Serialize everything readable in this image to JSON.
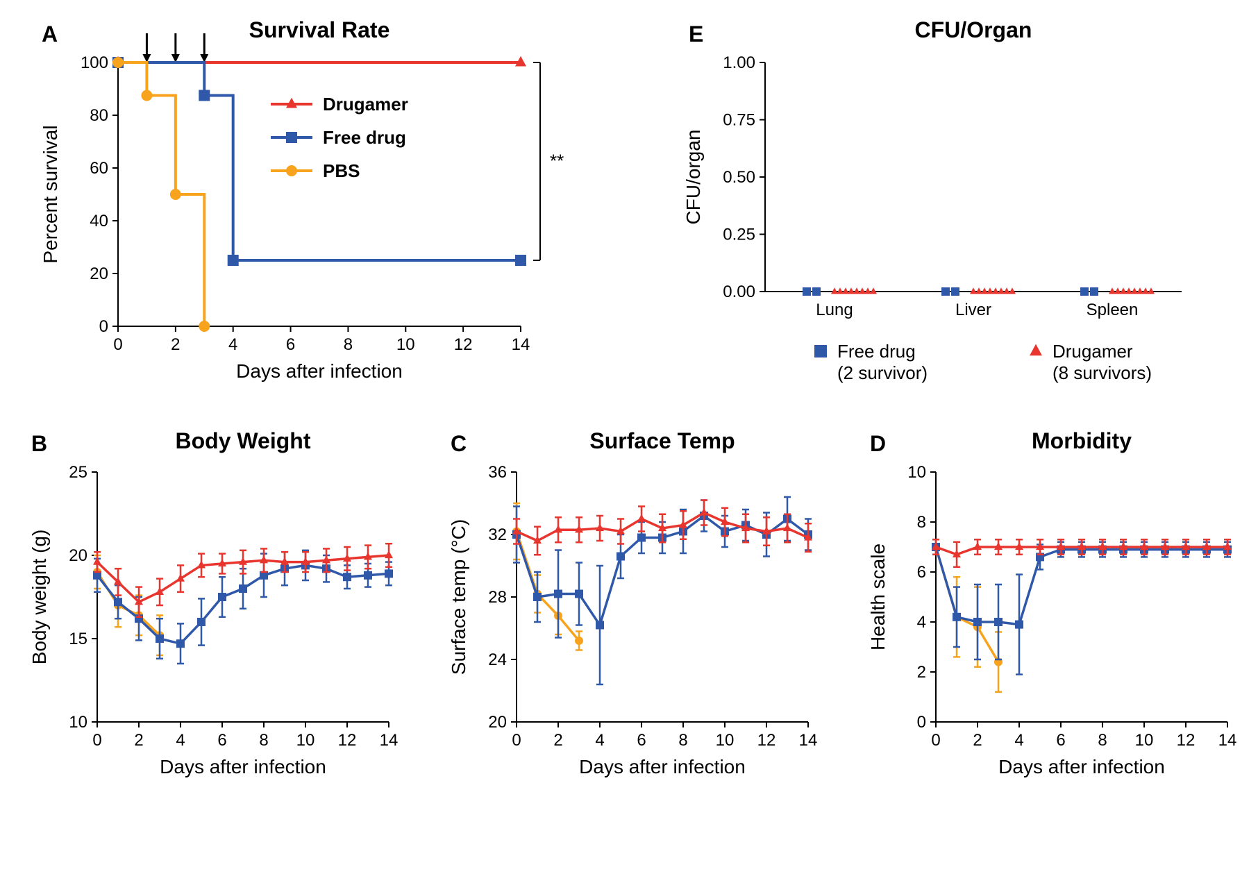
{
  "colors": {
    "drugamer": "#e8352e",
    "freedrug": "#3058a9",
    "pbs": "#f7a31d",
    "axis": "#000000",
    "background": "#ffffff"
  },
  "font": {
    "family": "Arial",
    "title_size": 32,
    "axis_label_size": 28,
    "tick_size": 24,
    "legend_size": 26
  },
  "panelA": {
    "label": "A",
    "title": "Survival Rate",
    "type": "step-line",
    "xlabel": "Days after infection",
    "ylabel": "Percent survival",
    "xlim": [
      0,
      14
    ],
    "ylim": [
      0,
      100
    ],
    "xticks": [
      0,
      2,
      4,
      6,
      8,
      10,
      12,
      14
    ],
    "yticks": [
      0,
      20,
      40,
      60,
      80,
      100
    ],
    "arrows_x": [
      1,
      2,
      3
    ],
    "annotation": "**",
    "legend": [
      {
        "name": "Drugamer",
        "marker": "triangle",
        "color": "#e8352e"
      },
      {
        "name": "Free drug",
        "marker": "square",
        "color": "#3058a9"
      },
      {
        "name": "PBS",
        "marker": "circle",
        "color": "#f7a31d"
      }
    ],
    "series": {
      "drugamer": {
        "color": "#e8352e",
        "marker": "triangle",
        "points": [
          [
            0,
            100
          ],
          [
            14,
            100
          ]
        ],
        "markers_at": [
          [
            0,
            100
          ],
          [
            14,
            100
          ]
        ]
      },
      "freedrug": {
        "color": "#3058a9",
        "marker": "square",
        "points": [
          [
            0,
            100
          ],
          [
            3,
            100
          ],
          [
            3,
            87.5
          ],
          [
            4,
            87.5
          ],
          [
            4,
            25
          ],
          [
            14,
            25
          ]
        ],
        "markers_at": [
          [
            0,
            100
          ],
          [
            3,
            87.5
          ],
          [
            4,
            25
          ],
          [
            14,
            25
          ]
        ]
      },
      "pbs": {
        "color": "#f7a31d",
        "marker": "circle",
        "points": [
          [
            0,
            100
          ],
          [
            1,
            100
          ],
          [
            1,
            87.5
          ],
          [
            2,
            87.5
          ],
          [
            2,
            50
          ],
          [
            3,
            50
          ],
          [
            3,
            0
          ]
        ],
        "markers_at": [
          [
            0,
            100
          ],
          [
            1,
            87.5
          ],
          [
            2,
            50
          ],
          [
            3,
            0
          ]
        ]
      }
    }
  },
  "panelE": {
    "label": "E",
    "title": "CFU/Organ",
    "type": "scatter",
    "ylabel": "CFU/organ",
    "ylim": [
      0,
      1.0
    ],
    "yticks": [
      0,
      0.25,
      0.5,
      0.75,
      1.0
    ],
    "categories": [
      "Lung",
      "Liver",
      "Spleen"
    ],
    "legend": [
      {
        "name": "Free drug",
        "sub": "(2 survivor)",
        "marker": "square",
        "color": "#3058a9"
      },
      {
        "name": "Drugamer",
        "sub": "(8 survivors)",
        "marker": "triangle",
        "color": "#e8352e"
      }
    ],
    "freedrug_per_cat": 2,
    "drugamer_per_cat": 8,
    "value": 0
  },
  "panelB": {
    "label": "B",
    "title": "Body Weight",
    "type": "line-errorbar",
    "xlabel": "Days after infection",
    "ylabel": "Body weight (g)",
    "xlim": [
      0,
      14
    ],
    "ylim": [
      10,
      25
    ],
    "xticks": [
      0,
      2,
      4,
      6,
      8,
      10,
      12,
      14
    ],
    "yticks": [
      10,
      15,
      20,
      25
    ],
    "series": {
      "drugamer": {
        "color": "#e8352e",
        "marker": "triangle",
        "xy": [
          [
            0,
            19.6,
            0.6
          ],
          [
            1,
            18.4,
            0.8
          ],
          [
            2,
            17.2,
            0.9
          ],
          [
            3,
            17.8,
            0.8
          ],
          [
            4,
            18.6,
            0.8
          ],
          [
            5,
            19.4,
            0.7
          ],
          [
            6,
            19.5,
            0.6
          ],
          [
            7,
            19.6,
            0.7
          ],
          [
            8,
            19.7,
            0.7
          ],
          [
            9,
            19.6,
            0.6
          ],
          [
            10,
            19.6,
            0.6
          ],
          [
            11,
            19.7,
            0.7
          ],
          [
            12,
            19.8,
            0.7
          ],
          [
            13,
            19.9,
            0.7
          ],
          [
            14,
            20.0,
            0.7
          ]
        ]
      },
      "freedrug": {
        "color": "#3058a9",
        "marker": "square",
        "xy": [
          [
            0,
            18.8,
            1.0
          ],
          [
            1,
            17.2,
            1.0
          ],
          [
            2,
            16.2,
            1.3
          ],
          [
            3,
            15.0,
            1.2
          ],
          [
            4,
            14.7,
            1.2
          ],
          [
            5,
            16.0,
            1.4
          ],
          [
            6,
            17.5,
            1.2
          ],
          [
            7,
            18.0,
            1.2
          ],
          [
            8,
            18.8,
            1.3
          ],
          [
            9,
            19.2,
            1.0
          ],
          [
            10,
            19.4,
            0.9
          ],
          [
            11,
            19.2,
            0.8
          ],
          [
            12,
            18.7,
            0.7
          ],
          [
            13,
            18.8,
            0.7
          ],
          [
            14,
            18.9,
            0.7
          ]
        ]
      },
      "pbs": {
        "color": "#f7a31d",
        "marker": "circle",
        "xy": [
          [
            0,
            19.0,
            1.0
          ],
          [
            1,
            17.0,
            1.3
          ],
          [
            2,
            16.4,
            1.2
          ],
          [
            3,
            15.2,
            1.2
          ]
        ]
      }
    }
  },
  "panelC": {
    "label": "C",
    "title": "Surface Temp",
    "type": "line-errorbar",
    "xlabel": "Days after infection",
    "ylabel": "Surface temp (°C)",
    "xlim": [
      0,
      14
    ],
    "ylim": [
      20,
      36
    ],
    "xticks": [
      0,
      2,
      4,
      6,
      8,
      10,
      12,
      14
    ],
    "yticks": [
      20,
      24,
      28,
      32,
      36
    ],
    "series": {
      "drugamer": {
        "color": "#e8352e",
        "marker": "triangle",
        "xy": [
          [
            0,
            32.2,
            0.8
          ],
          [
            1,
            31.6,
            0.9
          ],
          [
            2,
            32.3,
            0.8
          ],
          [
            3,
            32.3,
            0.8
          ],
          [
            4,
            32.4,
            0.8
          ],
          [
            5,
            32.2,
            0.8
          ],
          [
            6,
            33.0,
            0.8
          ],
          [
            7,
            32.4,
            0.9
          ],
          [
            8,
            32.6,
            0.9
          ],
          [
            9,
            33.4,
            0.8
          ],
          [
            10,
            32.8,
            0.9
          ],
          [
            11,
            32.4,
            0.9
          ],
          [
            12,
            32.2,
            0.9
          ],
          [
            13,
            32.4,
            0.9
          ],
          [
            14,
            31.8,
            0.9
          ]
        ]
      },
      "freedrug": {
        "color": "#3058a9",
        "marker": "square",
        "xy": [
          [
            0,
            32.0,
            1.8
          ],
          [
            1,
            28.0,
            1.6
          ],
          [
            2,
            28.2,
            2.8
          ],
          [
            3,
            28.2,
            2.0
          ],
          [
            4,
            26.2,
            3.8
          ],
          [
            5,
            30.6,
            1.4
          ],
          [
            6,
            31.8,
            1.0
          ],
          [
            7,
            31.8,
            1.0
          ],
          [
            8,
            32.2,
            1.4
          ],
          [
            9,
            33.2,
            1.0
          ],
          [
            10,
            32.2,
            1.0
          ],
          [
            11,
            32.6,
            1.0
          ],
          [
            12,
            32.0,
            1.4
          ],
          [
            13,
            33.0,
            1.4
          ],
          [
            14,
            32.0,
            1.0
          ]
        ]
      },
      "pbs": {
        "color": "#f7a31d",
        "marker": "circle",
        "xy": [
          [
            0,
            32.2,
            1.8
          ],
          [
            1,
            28.2,
            1.2
          ],
          [
            2,
            26.8,
            1.2
          ],
          [
            3,
            25.2,
            0.6
          ]
        ]
      }
    }
  },
  "panelD": {
    "label": "D",
    "title": "Morbidity",
    "type": "line-errorbar",
    "xlabel": "Days after infection",
    "ylabel": "Health scale",
    "xlim": [
      0,
      14
    ],
    "ylim": [
      0,
      10
    ],
    "xticks": [
      0,
      2,
      4,
      6,
      8,
      10,
      12,
      14
    ],
    "yticks": [
      0,
      2,
      4,
      6,
      8,
      10
    ],
    "series": {
      "drugamer": {
        "color": "#e8352e",
        "marker": "triangle",
        "xy": [
          [
            0,
            7.0,
            0.3
          ],
          [
            1,
            6.7,
            0.5
          ],
          [
            2,
            7.0,
            0.3
          ],
          [
            3,
            7.0,
            0.3
          ],
          [
            4,
            7.0,
            0.3
          ],
          [
            5,
            7.0,
            0.3
          ],
          [
            6,
            7.0,
            0.3
          ],
          [
            7,
            7.0,
            0.3
          ],
          [
            8,
            7.0,
            0.3
          ],
          [
            9,
            7.0,
            0.3
          ],
          [
            10,
            7.0,
            0.3
          ],
          [
            11,
            7.0,
            0.3
          ],
          [
            12,
            7.0,
            0.3
          ],
          [
            13,
            7.0,
            0.3
          ],
          [
            14,
            7.0,
            0.3
          ]
        ]
      },
      "freedrug": {
        "color": "#3058a9",
        "marker": "square",
        "xy": [
          [
            0,
            7.0,
            0.3
          ],
          [
            1,
            4.2,
            1.2
          ],
          [
            2,
            4.0,
            1.5
          ],
          [
            3,
            4.0,
            1.5
          ],
          [
            4,
            3.9,
            2.0
          ],
          [
            5,
            6.6,
            0.5
          ],
          [
            6,
            6.9,
            0.3
          ],
          [
            7,
            6.9,
            0.3
          ],
          [
            8,
            6.9,
            0.3
          ],
          [
            9,
            6.9,
            0.3
          ],
          [
            10,
            6.9,
            0.3
          ],
          [
            11,
            6.9,
            0.3
          ],
          [
            12,
            6.9,
            0.3
          ],
          [
            13,
            6.9,
            0.3
          ],
          [
            14,
            6.9,
            0.3
          ]
        ]
      },
      "pbs": {
        "color": "#f7a31d",
        "marker": "circle",
        "xy": [
          [
            0,
            7.0,
            0.3
          ],
          [
            1,
            4.2,
            1.6
          ],
          [
            2,
            3.8,
            1.6
          ],
          [
            3,
            2.4,
            1.2
          ]
        ]
      }
    }
  }
}
